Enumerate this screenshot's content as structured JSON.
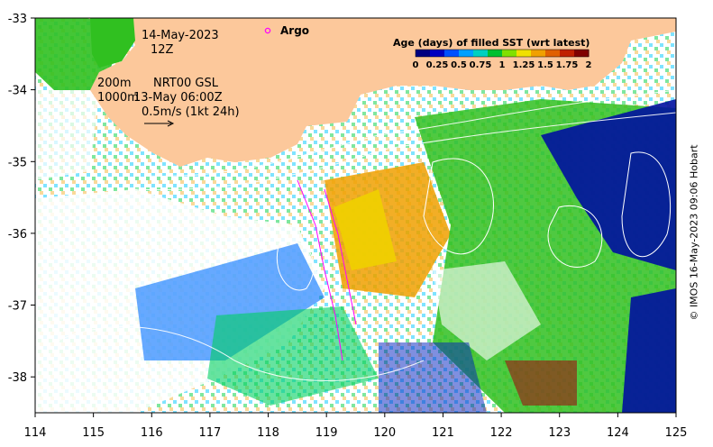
{
  "map": {
    "date": "14-May-2023",
    "time": "12Z",
    "contours": "200m\n1000m",
    "contour_1": "200m",
    "contour_2": "1000m",
    "source": "NRT00 GSL",
    "fill_time": "13-May 06:00Z",
    "vector_scale": "0.5m/s (1kt 24h)",
    "argo_label": "Argo",
    "argo_color": "#ff00ff",
    "land_color": "#fcc89b",
    "credit": "© IMOS 16-May-2023 09:06 Hobart",
    "x_ticks": [
      "114",
      "115",
      "116",
      "117",
      "118",
      "119",
      "120",
      "121",
      "122",
      "123",
      "124",
      "125"
    ],
    "y_ticks": [
      "-33",
      "-34",
      "-35",
      "-36",
      "-37",
      "-38"
    ],
    "colorbar": {
      "title": "Age (days) of filled SST (wrt latest)",
      "tick_labels": [
        "0",
        "0.25",
        "0.5",
        "0.75",
        "1",
        "1.25",
        "1.5",
        "1.75",
        "2"
      ],
      "colors": [
        "#000080",
        "#0000c0",
        "#0050ff",
        "#00a0ff",
        "#00d0c0",
        "#00c030",
        "#80e000",
        "#f0e000",
        "#f0a000",
        "#e06000",
        "#c02000",
        "#800000"
      ]
    }
  }
}
